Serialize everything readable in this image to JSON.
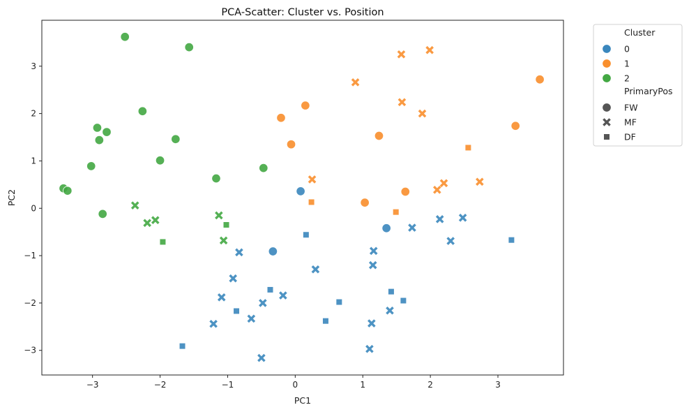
{
  "chart_data": {
    "type": "scatter",
    "title": "PCA-Scatter: Cluster vs. Position",
    "xlabel": "PC1",
    "ylabel": "PC2",
    "xlim": [
      -3.75,
      3.97
    ],
    "ylim": [
      -3.52,
      3.97
    ],
    "xticks": [
      -3,
      -2,
      -1,
      0,
      1,
      2,
      3
    ],
    "yticks": [
      -3,
      -2,
      -1,
      0,
      1,
      2,
      3
    ],
    "tick_labels_x": [
      "−3",
      "−2",
      "−1",
      "0",
      "1",
      "2",
      "3"
    ],
    "tick_labels_y": [
      "−3",
      "−2",
      "−1",
      "0",
      "1",
      "2",
      "3"
    ],
    "grid": false,
    "legend_position": "outside-right-top",
    "cluster_colors": {
      "0": "#3a87bd",
      "1": "#f98f2d",
      "2": "#43a843"
    },
    "legend": {
      "hue_title": "Cluster",
      "hue_entries": [
        {
          "label": "0",
          "cluster": "0"
        },
        {
          "label": "1",
          "cluster": "1"
        },
        {
          "label": "2",
          "cluster": "2"
        }
      ],
      "style_title": "PrimaryPos",
      "style_entries": [
        {
          "label": "FW",
          "marker": "circle"
        },
        {
          "label": "MF",
          "marker": "x"
        },
        {
          "label": "DF",
          "marker": "square"
        }
      ]
    },
    "points": [
      {
        "x": -2.52,
        "y": 3.62,
        "cluster": "2",
        "pos": "FW"
      },
      {
        "x": -1.57,
        "y": 3.4,
        "cluster": "2",
        "pos": "FW"
      },
      {
        "x": -2.26,
        "y": 2.05,
        "cluster": "2",
        "pos": "FW"
      },
      {
        "x": -2.93,
        "y": 1.7,
        "cluster": "2",
        "pos": "FW"
      },
      {
        "x": -2.79,
        "y": 1.61,
        "cluster": "2",
        "pos": "FW"
      },
      {
        "x": -2.9,
        "y": 1.44,
        "cluster": "2",
        "pos": "FW"
      },
      {
        "x": -1.77,
        "y": 1.46,
        "cluster": "2",
        "pos": "FW"
      },
      {
        "x": -2.0,
        "y": 1.01,
        "cluster": "2",
        "pos": "FW"
      },
      {
        "x": -3.02,
        "y": 0.89,
        "cluster": "2",
        "pos": "FW"
      },
      {
        "x": -0.47,
        "y": 0.85,
        "cluster": "2",
        "pos": "FW"
      },
      {
        "x": -1.17,
        "y": 0.63,
        "cluster": "2",
        "pos": "FW"
      },
      {
        "x": -3.43,
        "y": 0.42,
        "cluster": "2",
        "pos": "FW"
      },
      {
        "x": -3.37,
        "y": 0.37,
        "cluster": "2",
        "pos": "FW"
      },
      {
        "x": -2.85,
        "y": -0.12,
        "cluster": "2",
        "pos": "FW"
      },
      {
        "x": -2.37,
        "y": 0.06,
        "cluster": "2",
        "pos": "MF"
      },
      {
        "x": -2.19,
        "y": -0.31,
        "cluster": "2",
        "pos": "MF"
      },
      {
        "x": -2.07,
        "y": -0.25,
        "cluster": "2",
        "pos": "MF"
      },
      {
        "x": -1.13,
        "y": -0.15,
        "cluster": "2",
        "pos": "MF"
      },
      {
        "x": -1.06,
        "y": -0.68,
        "cluster": "2",
        "pos": "MF"
      },
      {
        "x": -1.02,
        "y": -0.35,
        "cluster": "2",
        "pos": "DF"
      },
      {
        "x": -1.96,
        "y": -0.71,
        "cluster": "2",
        "pos": "DF"
      },
      {
        "x": 3.62,
        "y": 2.72,
        "cluster": "1",
        "pos": "FW"
      },
      {
        "x": 3.26,
        "y": 1.74,
        "cluster": "1",
        "pos": "FW"
      },
      {
        "x": 0.15,
        "y": 2.17,
        "cluster": "1",
        "pos": "FW"
      },
      {
        "x": -0.21,
        "y": 1.91,
        "cluster": "1",
        "pos": "FW"
      },
      {
        "x": 1.24,
        "y": 1.53,
        "cluster": "1",
        "pos": "FW"
      },
      {
        "x": -0.06,
        "y": 1.35,
        "cluster": "1",
        "pos": "FW"
      },
      {
        "x": 1.63,
        "y": 0.35,
        "cluster": "1",
        "pos": "FW"
      },
      {
        "x": 1.03,
        "y": 0.12,
        "cluster": "1",
        "pos": "FW"
      },
      {
        "x": 1.99,
        "y": 3.34,
        "cluster": "1",
        "pos": "MF"
      },
      {
        "x": 1.57,
        "y": 3.25,
        "cluster": "1",
        "pos": "MF"
      },
      {
        "x": 0.89,
        "y": 2.66,
        "cluster": "1",
        "pos": "MF"
      },
      {
        "x": 1.58,
        "y": 2.24,
        "cluster": "1",
        "pos": "MF"
      },
      {
        "x": 1.88,
        "y": 2.0,
        "cluster": "1",
        "pos": "MF"
      },
      {
        "x": 0.25,
        "y": 0.61,
        "cluster": "1",
        "pos": "MF"
      },
      {
        "x": 2.2,
        "y": 0.53,
        "cluster": "1",
        "pos": "MF"
      },
      {
        "x": 2.1,
        "y": 0.39,
        "cluster": "1",
        "pos": "MF"
      },
      {
        "x": 2.73,
        "y": 0.56,
        "cluster": "1",
        "pos": "MF"
      },
      {
        "x": 2.56,
        "y": 1.28,
        "cluster": "1",
        "pos": "DF"
      },
      {
        "x": 0.24,
        "y": 0.13,
        "cluster": "1",
        "pos": "DF"
      },
      {
        "x": 1.49,
        "y": -0.08,
        "cluster": "1",
        "pos": "DF"
      },
      {
        "x": 0.08,
        "y": 0.36,
        "cluster": "0",
        "pos": "FW"
      },
      {
        "x": 1.35,
        "y": -0.42,
        "cluster": "0",
        "pos": "FW"
      },
      {
        "x": -0.33,
        "y": -0.91,
        "cluster": "0",
        "pos": "FW"
      },
      {
        "x": 1.73,
        "y": -0.41,
        "cluster": "0",
        "pos": "MF"
      },
      {
        "x": 2.14,
        "y": -0.23,
        "cluster": "0",
        "pos": "MF"
      },
      {
        "x": 2.48,
        "y": -0.2,
        "cluster": "0",
        "pos": "MF"
      },
      {
        "x": 2.3,
        "y": -0.69,
        "cluster": "0",
        "pos": "MF"
      },
      {
        "x": 1.16,
        "y": -0.9,
        "cluster": "0",
        "pos": "MF"
      },
      {
        "x": 1.15,
        "y": -1.2,
        "cluster": "0",
        "pos": "MF"
      },
      {
        "x": -0.83,
        "y": -0.93,
        "cluster": "0",
        "pos": "MF"
      },
      {
        "x": 0.3,
        "y": -1.29,
        "cluster": "0",
        "pos": "MF"
      },
      {
        "x": -0.92,
        "y": -1.48,
        "cluster": "0",
        "pos": "MF"
      },
      {
        "x": -1.09,
        "y": -1.88,
        "cluster": "0",
        "pos": "MF"
      },
      {
        "x": -0.18,
        "y": -1.84,
        "cluster": "0",
        "pos": "MF"
      },
      {
        "x": -0.48,
        "y": -2.0,
        "cluster": "0",
        "pos": "MF"
      },
      {
        "x": 1.4,
        "y": -2.16,
        "cluster": "0",
        "pos": "MF"
      },
      {
        "x": -0.65,
        "y": -2.33,
        "cluster": "0",
        "pos": "MF"
      },
      {
        "x": -1.21,
        "y": -2.44,
        "cluster": "0",
        "pos": "MF"
      },
      {
        "x": 1.13,
        "y": -2.43,
        "cluster": "0",
        "pos": "MF"
      },
      {
        "x": 1.1,
        "y": -2.97,
        "cluster": "0",
        "pos": "MF"
      },
      {
        "x": -0.5,
        "y": -3.16,
        "cluster": "0",
        "pos": "MF"
      },
      {
        "x": 0.16,
        "y": -0.56,
        "cluster": "0",
        "pos": "DF"
      },
      {
        "x": 3.2,
        "y": -0.67,
        "cluster": "0",
        "pos": "DF"
      },
      {
        "x": -0.37,
        "y": -1.72,
        "cluster": "0",
        "pos": "DF"
      },
      {
        "x": 1.42,
        "y": -1.76,
        "cluster": "0",
        "pos": "DF"
      },
      {
        "x": 1.6,
        "y": -1.95,
        "cluster": "0",
        "pos": "DF"
      },
      {
        "x": 0.65,
        "y": -1.98,
        "cluster": "0",
        "pos": "DF"
      },
      {
        "x": -0.87,
        "y": -2.17,
        "cluster": "0",
        "pos": "DF"
      },
      {
        "x": 0.45,
        "y": -2.38,
        "cluster": "0",
        "pos": "DF"
      },
      {
        "x": -1.67,
        "y": -2.91,
        "cluster": "0",
        "pos": "DF"
      }
    ]
  }
}
